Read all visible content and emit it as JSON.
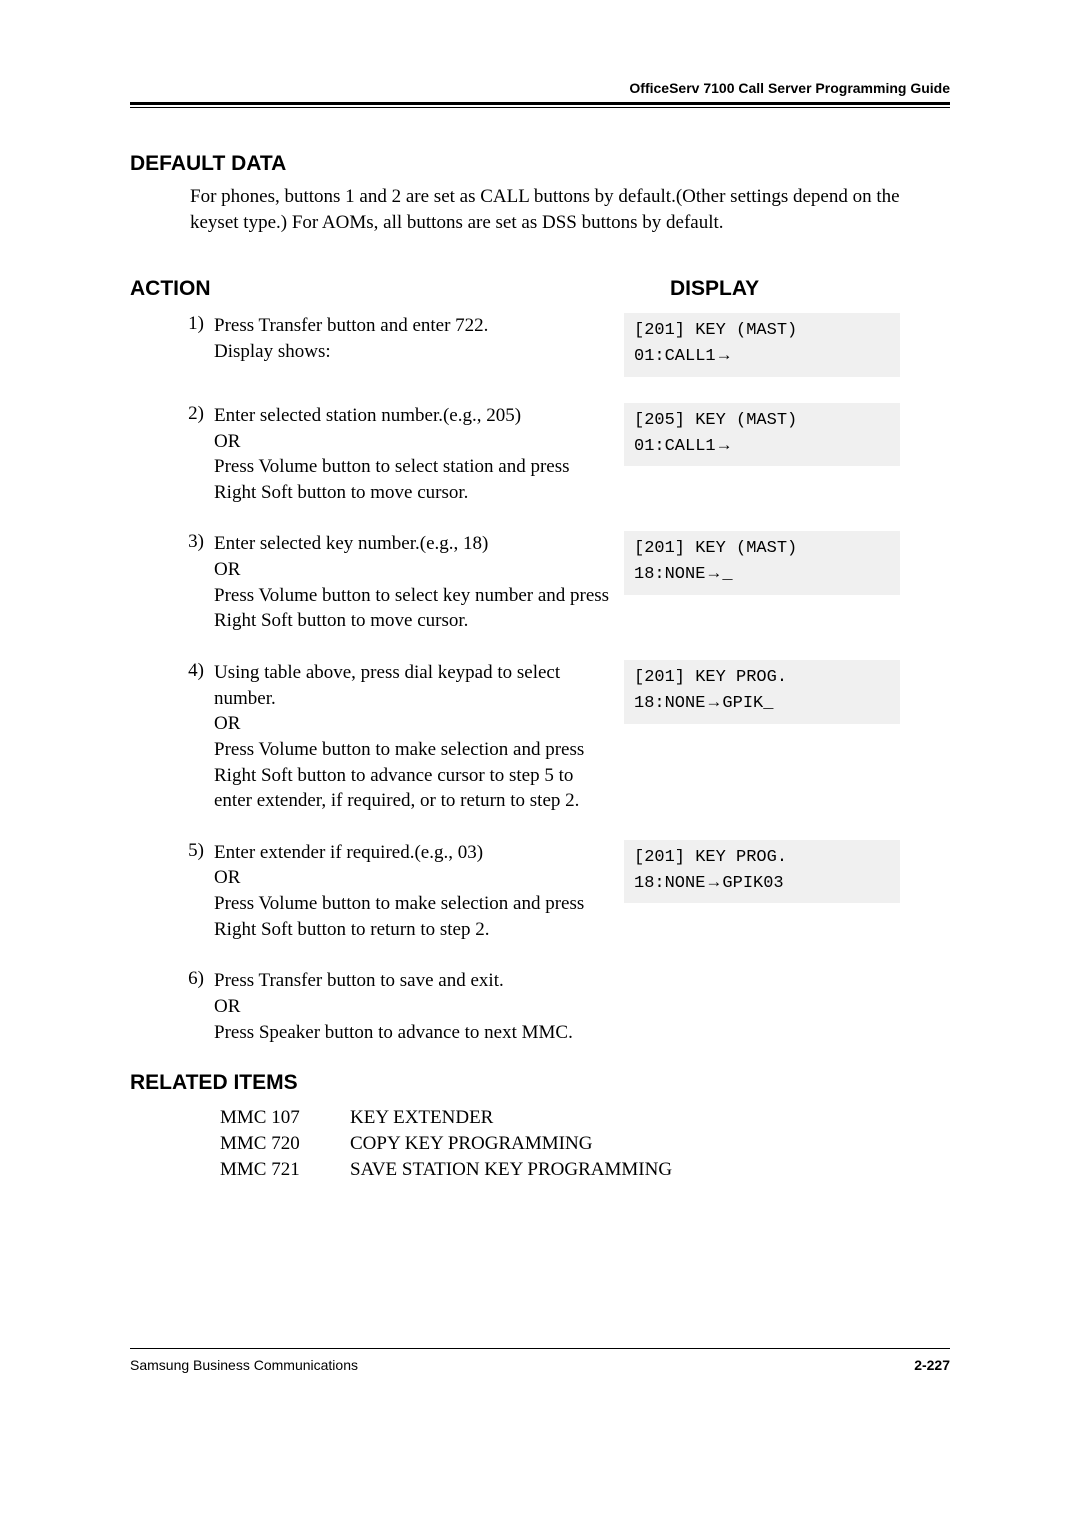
{
  "header": {
    "doc_title": "OfficeServ 7100 Call Server Programming Guide"
  },
  "default_data": {
    "heading": "DEFAULT DATA",
    "text": "For phones, buttons 1 and 2 are set as CALL buttons by default.(Other settings depend on the keyset type.) For AOMs, all buttons are set as DSS buttons by default."
  },
  "action_display": {
    "action_heading": "ACTION",
    "display_heading": "DISPLAY"
  },
  "steps": [
    {
      "num": "1)",
      "text": "Press Transfer button and enter 722.\nDisplay shows:",
      "display": "[201] KEY (MAST)\n01:CALL1→"
    },
    {
      "num": "2)",
      "text": "Enter selected station number.(e.g., 205)\nOR\nPress Volume button to select station and press Right Soft button to move cursor.",
      "display": "[205] KEY (MAST)\n01:CALL1→"
    },
    {
      "num": "3)",
      "text": "Enter selected key number.(e.g., 18)\nOR\nPress Volume button to select key number and press Right Soft button to move cursor.",
      "display": "[201] KEY (MAST)\n18:NONE→_"
    },
    {
      "num": "4)",
      "text": "Using table above, press dial keypad to select number.\nOR\nPress Volume button to make selection and press Right Soft button to advance cursor to step 5 to enter extender, if required, or to return to step 2.",
      "display": "[201] KEY PROG.\n18:NONE→GPIK_"
    },
    {
      "num": "5)",
      "text": "Enter extender if required.(e.g., 03)\nOR\nPress Volume button to make selection and press Right Soft button to return to step 2.",
      "display": "[201] KEY PROG.\n18:NONE→GPIK03"
    },
    {
      "num": "6)",
      "text": "Press Transfer button to save and exit.\nOR\nPress Speaker button to advance to next MMC.",
      "display": null
    }
  ],
  "related": {
    "heading": "RELATED ITEMS",
    "items": [
      {
        "mmc": "MMC 107",
        "desc": "KEY EXTENDER"
      },
      {
        "mmc": "MMC 720",
        "desc": "COPY KEY PROGRAMMING"
      },
      {
        "mmc": "MMC 721",
        "desc": "SAVE STATION KEY PROGRAMMING"
      }
    ]
  },
  "footer": {
    "left": "Samsung Business Communications",
    "right": "2-227"
  },
  "colors": {
    "background": "#ffffff",
    "text": "#000000",
    "display_bg": "#f0f0f0"
  }
}
